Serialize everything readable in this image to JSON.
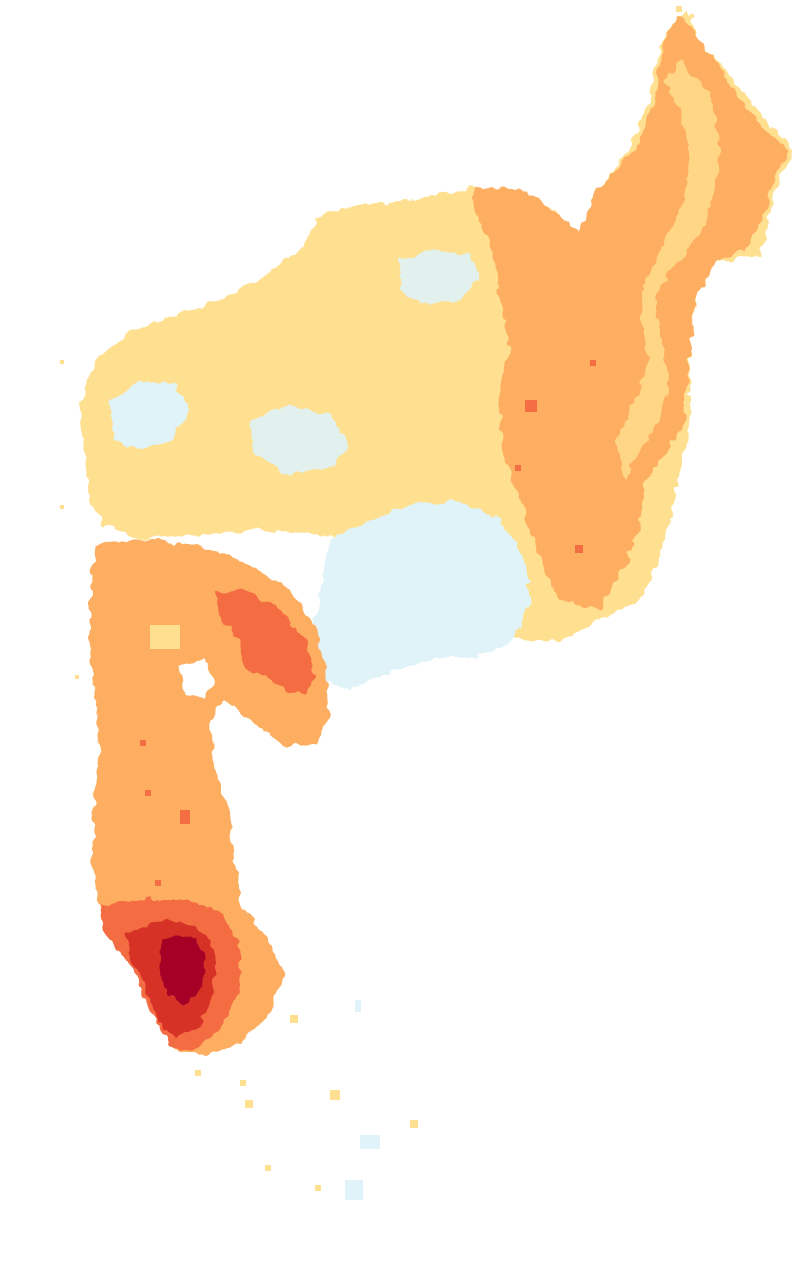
{
  "map": {
    "type": "choropleth raster",
    "background_color": "#ffffff",
    "legend": null,
    "title": null,
    "classes": [
      {
        "color": "#e0f3f8",
        "label": ""
      },
      {
        "color": "#fee090",
        "label": ""
      },
      {
        "color": "#fdae61",
        "label": ""
      },
      {
        "color": "#f46d43",
        "label": ""
      },
      {
        "color": "#d73027",
        "label": ""
      },
      {
        "color": "#a50026",
        "label": ""
      }
    ]
  }
}
